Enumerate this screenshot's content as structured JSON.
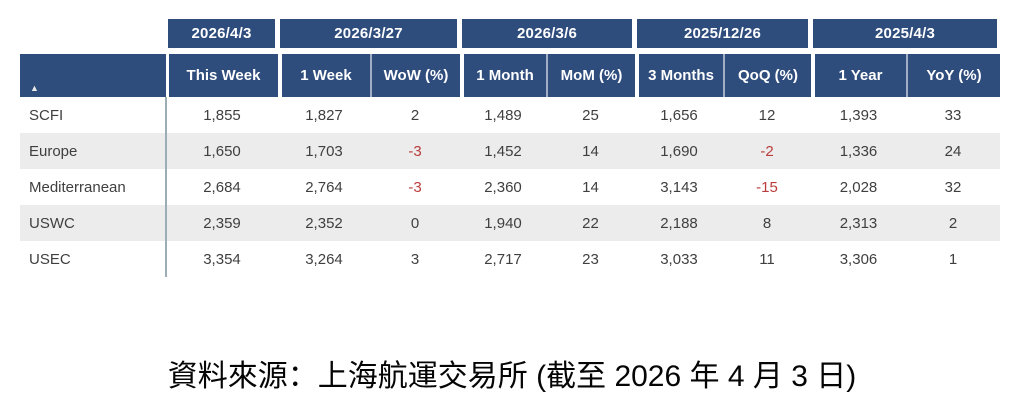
{
  "table": {
    "sort_indicator": "▲",
    "date_groups": [
      {
        "date": "2026/4/3"
      },
      {
        "date": "2026/3/27"
      },
      {
        "date": "2026/3/6"
      },
      {
        "date": "2025/12/26"
      },
      {
        "date": "2025/4/3"
      }
    ],
    "columns": [
      "This Week",
      "1 Week",
      "WoW (%)",
      "1 Month",
      "MoM (%)",
      "3 Months",
      "QoQ (%)",
      "1 Year",
      "YoY (%)"
    ],
    "rows": [
      {
        "label": "SCFI",
        "values": [
          "1,855",
          "1,827",
          "2",
          "1,489",
          "25",
          "1,656",
          "12",
          "1,393",
          "33"
        ]
      },
      {
        "label": "Europe",
        "values": [
          "1,650",
          "1,703",
          "-3",
          "1,452",
          "14",
          "1,690",
          "-2",
          "1,336",
          "24"
        ]
      },
      {
        "label": "Mediterranean",
        "values": [
          "2,684",
          "2,764",
          "-3",
          "2,360",
          "14",
          "3,143",
          "-15",
          "2,028",
          "32"
        ]
      },
      {
        "label": "USWC",
        "values": [
          "2,359",
          "2,352",
          "0",
          "1,940",
          "22",
          "2,188",
          "8",
          "2,313",
          "2"
        ]
      },
      {
        "label": "USEC",
        "values": [
          "3,354",
          "3,264",
          "3",
          "2,717",
          "23",
          "3,033",
          "11",
          "3,306",
          "1"
        ]
      }
    ]
  },
  "caption": "資料來源：上海航運交易所 (截至 2026 年 4 月 3 日)",
  "colors": {
    "header_blue": "#2e4c7c",
    "stripe_gray": "#ececec",
    "negative_red": "#bb3c3c",
    "divider_steel": "#9badb5",
    "text_dark": "#3f3f3f"
  },
  "chart_data": {
    "type": "table",
    "title": "SCFI freight index comparison table",
    "date_headers": [
      "2026/4/3",
      "2026/3/27",
      "2026/3/6",
      "2025/12/26",
      "2025/4/3"
    ],
    "columns": [
      "This Week",
      "1 Week",
      "WoW (%)",
      "1 Month",
      "MoM (%)",
      "3 Months",
      "QoQ (%)",
      "1 Year",
      "YoY (%)"
    ],
    "rows": [
      {
        "label": "SCFI",
        "values": [
          1855,
          1827,
          2,
          1489,
          25,
          1656,
          12,
          1393,
          33
        ]
      },
      {
        "label": "Europe",
        "values": [
          1650,
          1703,
          -3,
          1452,
          14,
          1690,
          -2,
          1336,
          24
        ]
      },
      {
        "label": "Mediterranean",
        "values": [
          2684,
          2764,
          -3,
          2360,
          14,
          3143,
          -15,
          2028,
          32
        ]
      },
      {
        "label": "USWC",
        "values": [
          2359,
          2352,
          0,
          1940,
          22,
          2188,
          8,
          2313,
          2
        ]
      },
      {
        "label": "USEC",
        "values": [
          3354,
          3264,
          3,
          2717,
          23,
          3033,
          11,
          3306,
          1
        ]
      }
    ],
    "caption": "資料來源：上海航運交易所 (截至 2026 年 4 月 3 日)"
  }
}
